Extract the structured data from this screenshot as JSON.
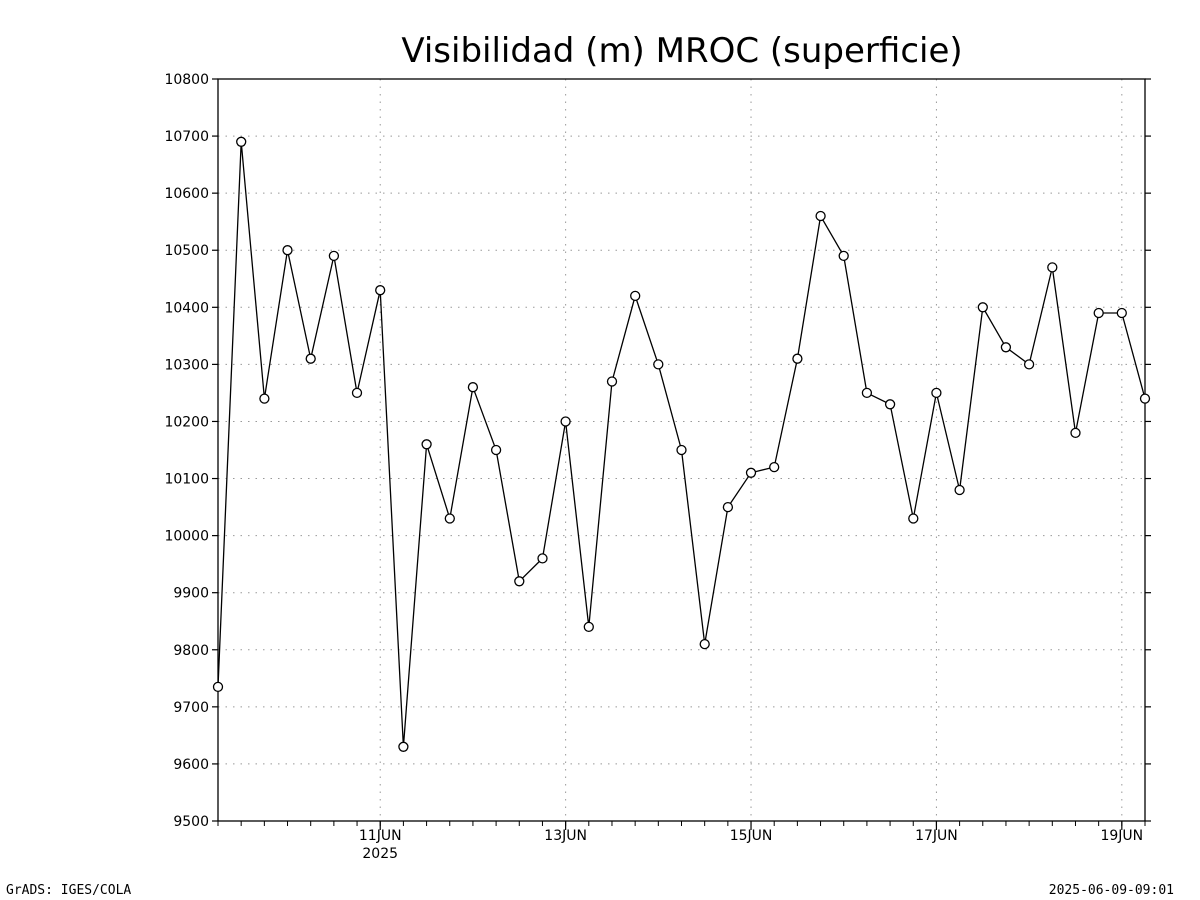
{
  "chart_data": {
    "type": "line",
    "title": "Visibilidad (m) MROC (superficie)",
    "xlabel": "",
    "ylabel": "",
    "ylim": [
      9500,
      10800
    ],
    "y_ticks": [
      9500,
      9600,
      9700,
      9800,
      9900,
      10000,
      10100,
      10200,
      10300,
      10400,
      10500,
      10600,
      10700,
      10800
    ],
    "x_range": [
      "2025-06-09 06:00",
      "2025-06-19 06:00"
    ],
    "x_ticks": [
      {
        "label": "11JUN",
        "sublabel": "2025",
        "date": "2025-06-11 00:00"
      },
      {
        "label": "13JUN",
        "sublabel": "",
        "date": "2025-06-13 00:00"
      },
      {
        "label": "15JUN",
        "sublabel": "",
        "date": "2025-06-15 00:00"
      },
      {
        "label": "17JUN",
        "sublabel": "",
        "date": "2025-06-17 00:00"
      },
      {
        "label": "19JUN",
        "sublabel": "",
        "date": "2025-06-19 00:00"
      }
    ],
    "grid": true,
    "marker": "open-circle",
    "line_color": "#000000",
    "x": [
      "2025-06-09 06:00",
      "2025-06-09 12:00",
      "2025-06-09 18:00",
      "2025-06-10 00:00",
      "2025-06-10 06:00",
      "2025-06-10 12:00",
      "2025-06-10 18:00",
      "2025-06-11 00:00",
      "2025-06-11 06:00",
      "2025-06-11 12:00",
      "2025-06-11 18:00",
      "2025-06-12 00:00",
      "2025-06-12 06:00",
      "2025-06-12 12:00",
      "2025-06-12 18:00",
      "2025-06-13 00:00",
      "2025-06-13 06:00",
      "2025-06-13 12:00",
      "2025-06-13 18:00",
      "2025-06-14 00:00",
      "2025-06-14 06:00",
      "2025-06-14 12:00",
      "2025-06-14 18:00",
      "2025-06-15 00:00",
      "2025-06-15 06:00",
      "2025-06-15 12:00",
      "2025-06-15 18:00",
      "2025-06-16 00:00",
      "2025-06-16 06:00",
      "2025-06-16 12:00",
      "2025-06-16 18:00",
      "2025-06-17 00:00",
      "2025-06-17 06:00",
      "2025-06-17 12:00",
      "2025-06-17 18:00",
      "2025-06-18 00:00",
      "2025-06-18 06:00",
      "2025-06-18 12:00",
      "2025-06-18 18:00",
      "2025-06-19 00:00",
      "2025-06-19 06:00"
    ],
    "series": [
      {
        "values": [
          9735,
          10690,
          10240,
          10500,
          10310,
          10490,
          10250,
          10430,
          9630,
          10160,
          10030,
          10260,
          10150,
          9920,
          9960,
          10200,
          9840,
          10270,
          10420,
          10300,
          10150,
          9810,
          10050,
          10110,
          10120,
          10310,
          10560,
          10490,
          10250,
          10230,
          10030,
          10250,
          10080,
          10400,
          10330,
          10300,
          10470,
          10180,
          10390,
          10390,
          10240
        ]
      }
    ]
  },
  "footer": {
    "left": "GrADS: IGES/COLA",
    "right": "2025-06-09-09:01"
  }
}
